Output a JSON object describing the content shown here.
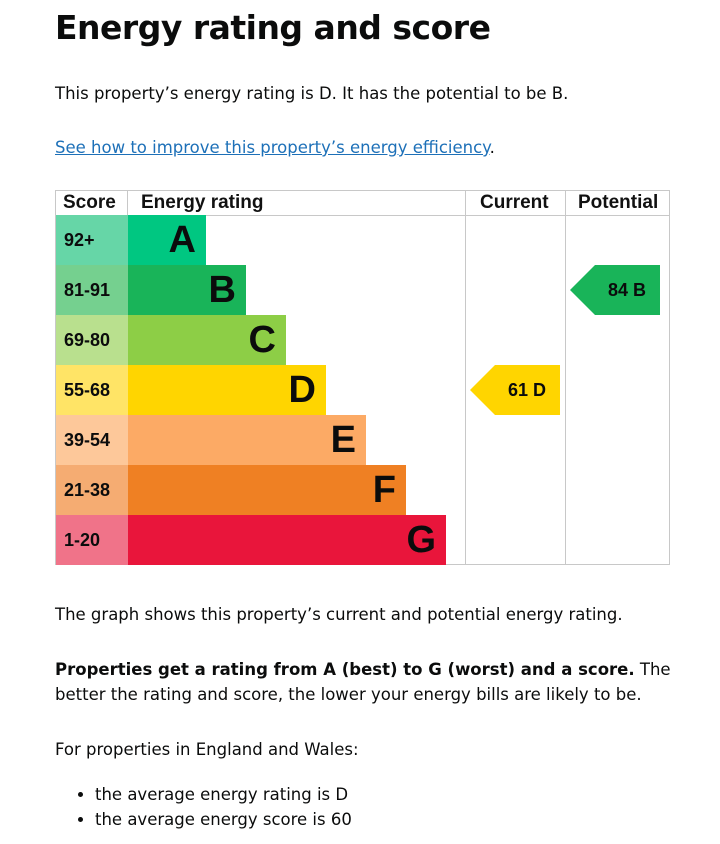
{
  "title": "Energy rating and score",
  "intro": "This property’s energy rating is D. It has the potential to be B.",
  "improve_link": "See how to improve this property’s energy efficiency",
  "improve_link_suffix": ".",
  "chart": {
    "headers": {
      "score": "Score",
      "rating": "Energy rating",
      "current": "Current",
      "potential": "Potential"
    },
    "bands": [
      {
        "score": "92+",
        "letter": "A",
        "color": "#00c781",
        "tint": "#66d6a7"
      },
      {
        "score": "81-91",
        "letter": "B",
        "color": "#19b459",
        "tint": "#75d08f"
      },
      {
        "score": "69-80",
        "letter": "C",
        "color": "#8dce46",
        "tint": "#b9e08e"
      },
      {
        "score": "55-68",
        "letter": "D",
        "color": "#ffd500",
        "tint": "#ffe466"
      },
      {
        "score": "39-54",
        "letter": "E",
        "color": "#fcaa65",
        "tint": "#fdc89a"
      },
      {
        "score": "21-38",
        "letter": "F",
        "color": "#ef8023",
        "tint": "#f5ac72"
      },
      {
        "score": "1-20",
        "letter": "G",
        "color": "#e9153b",
        "tint": "#f07389"
      }
    ],
    "current": {
      "label": "61 D",
      "score": 61,
      "band": "D"
    },
    "potential": {
      "label": "84 B",
      "score": 84,
      "band": "B"
    }
  },
  "graph_caption": "The graph shows this property’s current and potential energy rating.",
  "ratings_bold": "Properties get a rating from A (best) to G (worst) and a score.",
  "ratings_rest": " The better the rating and score, the lower your energy bills are likely to be.",
  "region_intro": "For properties in England and Wales:",
  "averages": [
    "the average energy rating is D",
    "the average energy score is 60"
  ]
}
